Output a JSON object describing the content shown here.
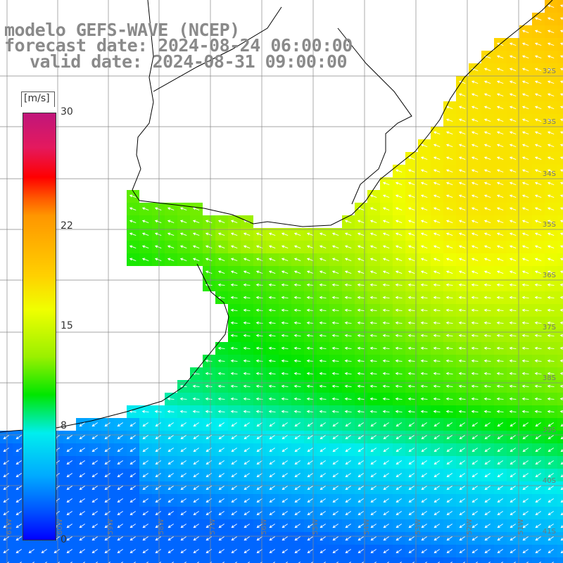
{
  "title": {
    "line1": "modelo GEFS-WAVE (NCEP)",
    "line2": "forecast date: 2024-08-24 06:00:00",
    "line3": "valid date: 2024-08-31 09:00:00"
  },
  "colorbar": {
    "unit": "[m/s]",
    "ticks": [
      "30",
      "22",
      "15",
      "8",
      "0"
    ],
    "tick_values": [
      30,
      22,
      15,
      8,
      0
    ],
    "min": 0,
    "max": 30,
    "colors": [
      "#0000ff",
      "#0055ff",
      "#00aaff",
      "#00eeee",
      "#00e600",
      "#9bf000",
      "#f0ff00",
      "#ffd000",
      "#ff9600",
      "#ff5a00",
      "#ff0000",
      "#e4195e",
      "#c0167a"
    ]
  },
  "latitude_labels": [
    "32S",
    "33S",
    "34S",
    "35S",
    "36S",
    "37S",
    "38S",
    "39S",
    "40S",
    "41S"
  ],
  "longitude_labels": [
    "61W",
    "60W",
    "59W",
    "58W",
    "57W",
    "56W",
    "55W",
    "54W",
    "53W",
    "52W",
    "51W"
  ],
  "colors": {
    "land": "#ffffff",
    "coastline": "#000000",
    "grid": "#888888",
    "arrows": "#ffffff",
    "title_text": "#8a8a8a"
  }
}
